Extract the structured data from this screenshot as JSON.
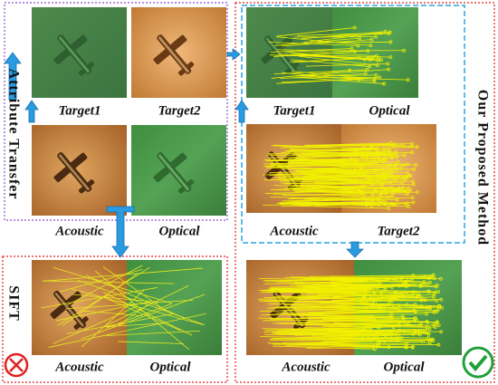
{
  "attribute_transfer": {
    "side_label": "Attribute Transfer",
    "labels": [
      "Target1",
      "Target2",
      "Acoustic",
      "Optical"
    ]
  },
  "sift": {
    "side_label": "SIFT",
    "labels": [
      "Acoustic",
      "Optical"
    ]
  },
  "proposed": {
    "side_label": "Our Proposed Method",
    "pair1": [
      "Target1",
      "Optical"
    ],
    "pair2": [
      "Acoustic",
      "Target2"
    ],
    "result": [
      "Acoustic",
      "Optical"
    ]
  }
}
